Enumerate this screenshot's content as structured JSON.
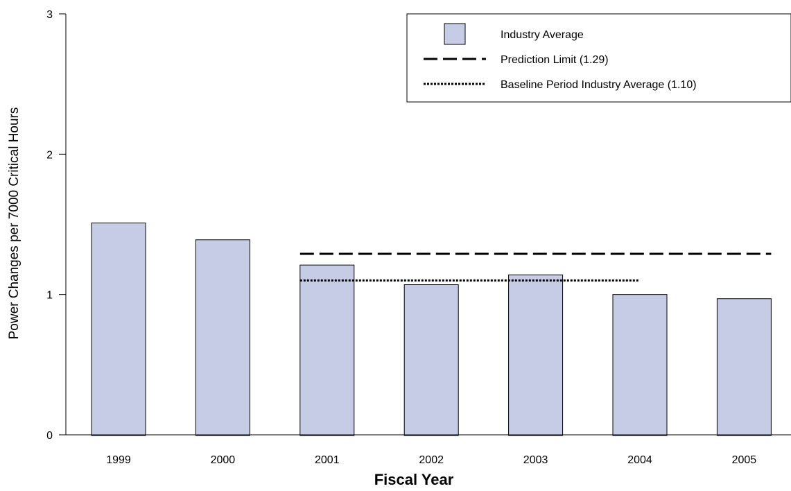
{
  "chart_data": {
    "type": "bar",
    "title": "",
    "xlabel": "Fiscal Year",
    "ylabel": "Power Changes per 7000 Critical Hours",
    "ylim": [
      0,
      3
    ],
    "yticks": [
      0,
      1,
      2,
      3
    ],
    "categories": [
      "1999",
      "2000",
      "2001",
      "2002",
      "2003",
      "2004",
      "2005"
    ],
    "series": [
      {
        "name": "Industry Average",
        "values": [
          1.51,
          1.39,
          1.21,
          1.07,
          1.14,
          1.0,
          0.97
        ],
        "color": "#c6cce6"
      }
    ],
    "reference_lines": [
      {
        "name": "Prediction Limit (1.29)",
        "value": 1.29,
        "style": "dashed",
        "from": "2001",
        "to": "2005"
      },
      {
        "name": "Baseline Period Industry Average (1.10)",
        "value": 1.1,
        "style": "dotted",
        "from": "2001",
        "to": "2004"
      }
    ],
    "legend": {
      "position": "top-right",
      "entries": [
        "Industry Average",
        "Prediction Limit (1.29)",
        "Baseline Period Industry Average (1.10)"
      ]
    },
    "grid": false
  }
}
